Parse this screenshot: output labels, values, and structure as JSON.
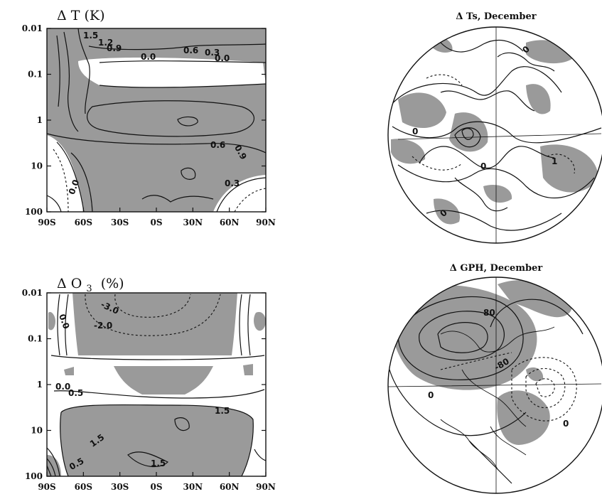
{
  "chart_data": [
    {
      "type": "contour",
      "title": "Δ T (K)",
      "x_ticks": [
        "90S",
        "60S",
        "30S",
        "0S",
        "30N",
        "60N",
        "90N"
      ],
      "y_ticks": [
        "0.01",
        "0.1",
        "1",
        "10",
        "100"
      ],
      "y_scale": "log",
      "y_reversed": true,
      "contour_labels": [
        "1.5",
        "1.2",
        "0.9",
        "0.0",
        "0.6",
        "0.3",
        "0.0",
        "0.6",
        "0.9",
        "0.3",
        "0.0"
      ]
    },
    {
      "type": "contour",
      "title": "Δ O",
      "title_subscript": "3",
      "title_units": "(%)",
      "x_ticks": [
        "90S",
        "60S",
        "30S",
        "0S",
        "30N",
        "60N",
        "90N"
      ],
      "y_ticks": [
        "0.01",
        "0.1",
        "1",
        "10",
        "100"
      ],
      "y_scale": "log",
      "y_reversed": true,
      "contour_labels": [
        "-3.0",
        "-2.0",
        "0.0",
        "0.0",
        "0.5",
        "1.5",
        "1.5",
        "1.5",
        "0.5"
      ]
    },
    {
      "type": "polar_map",
      "title": "Δ Ts, December",
      "contour_labels": [
        "0",
        "0",
        "0",
        "0",
        "1"
      ]
    },
    {
      "type": "polar_map",
      "title": "Δ GPH, December",
      "contour_labels": [
        "80",
        "-80",
        "0",
        "0"
      ]
    }
  ]
}
